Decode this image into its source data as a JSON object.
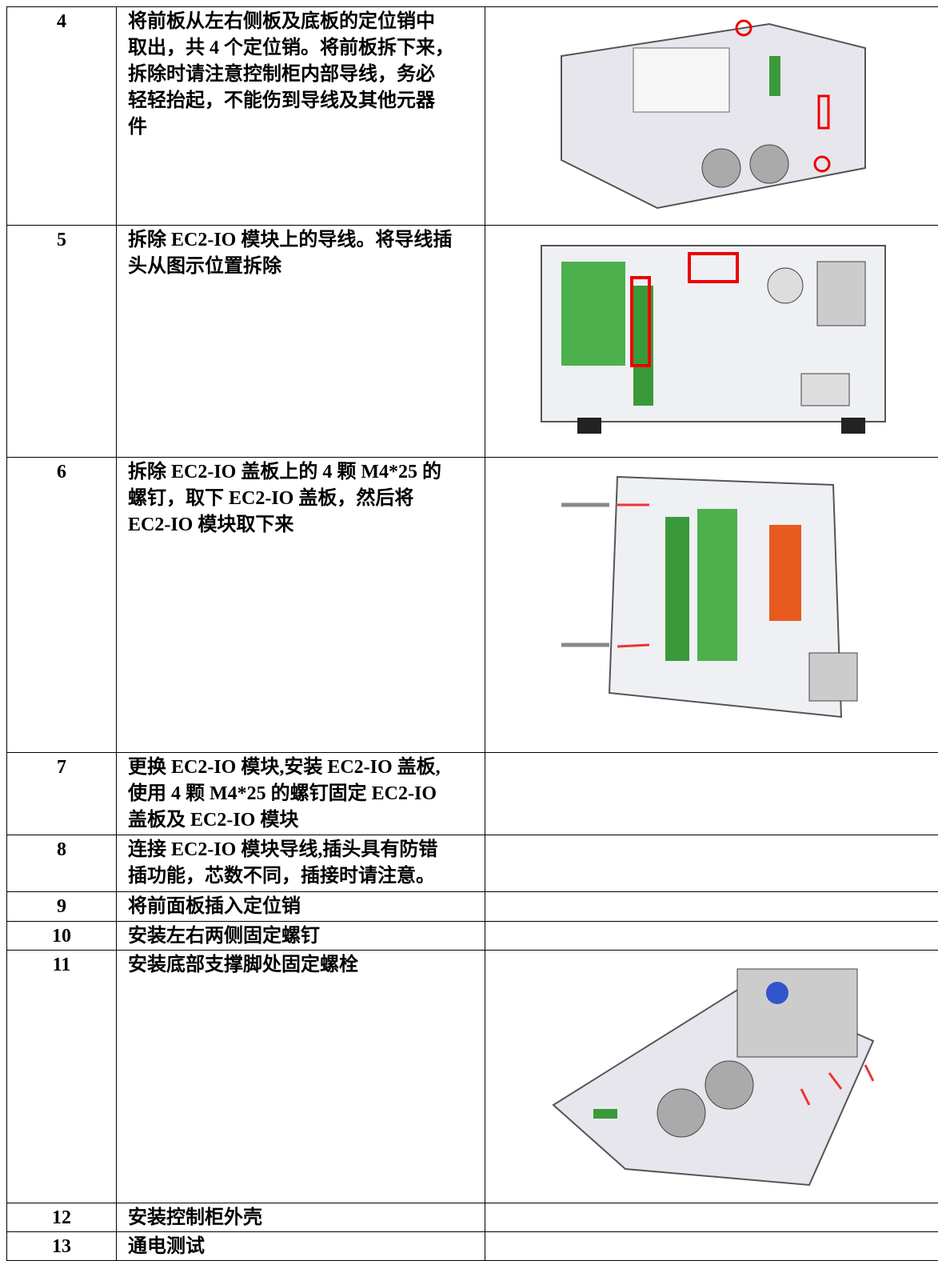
{
  "table": {
    "rows": [
      {
        "step": "4",
        "lines": [
          "将前板从左右侧板及底板的定位销中",
          "取出，共 4 个定位销。将前板拆下来，",
          "拆除时请注意控制柜内部导线，务必",
          "轻轻抬起，不能伤到导线及其他元器",
          "件"
        ]
      },
      {
        "step": "5",
        "lines": [
          "拆除 EC2-IO 模块上的导线。将导线插",
          "头从图示位置拆除"
        ]
      },
      {
        "step": "6",
        "lines": [
          "拆除 EC2-IO 盖板上的 4 颗 M4*25 的",
          "螺钉，取下 EC2-IO 盖板，然后将",
          "EC2-IO 模块取下来"
        ]
      },
      {
        "step": "7",
        "lines": [
          "更换 EC2-IO 模块,安装 EC2-IO 盖板,",
          "使用 4 颗 M4*25 的螺钉固定 EC2-IO",
          "盖板及 EC2-IO 模块"
        ]
      },
      {
        "step": "8",
        "lines": [
          "连接 EC2-IO 模块导线,插头具有防错",
          "插功能，芯数不同，插接时请注意。"
        ]
      },
      {
        "step": "9",
        "lines": [
          "将前面板插入定位销"
        ]
      },
      {
        "step": "10",
        "lines": [
          "安装左右两侧固定螺钉"
        ]
      },
      {
        "step": "11",
        "lines": [
          "安装底部支撑脚处固定螺栓"
        ]
      },
      {
        "step": "12",
        "lines": [
          "安装控制柜外壳"
        ]
      },
      {
        "step": "13",
        "lines": [
          "通电测试"
        ]
      }
    ]
  }
}
